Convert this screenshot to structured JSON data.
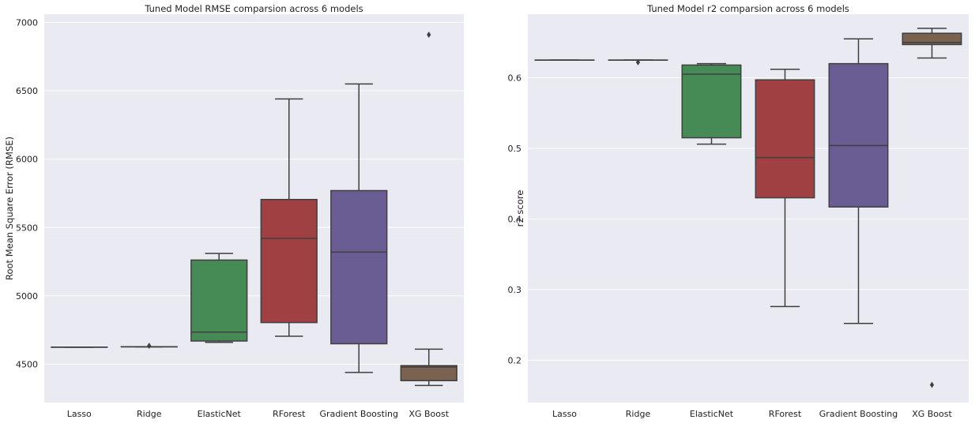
{
  "chart_data": [
    {
      "type": "box",
      "title": "Tuned Model RMSE comparsion across 6 models",
      "xlabel": "",
      "ylabel": "Root Mean Square Error (RMSE)",
      "ylim": [
        4220,
        7060
      ],
      "yticks": [
        4500,
        5000,
        5500,
        6000,
        6500,
        7000
      ],
      "yticklabels": [
        "4500",
        "5000",
        "5500",
        "6000",
        "6500",
        "7000"
      ],
      "grid": true,
      "categories": [
        "Lasso",
        "Ridge",
        "ElasticNet",
        "RForest",
        "Gradient Boosting",
        "XG Boost"
      ],
      "boxes": [
        {
          "whislo": 4625,
          "q1": 4625,
          "med": 4625,
          "q3": 4625,
          "whishi": 4625,
          "fliers": []
        },
        {
          "whislo": 4628,
          "q1": 4628,
          "med": 4628,
          "q3": 4628,
          "whishi": 4628,
          "fliers": [
            4635
          ]
        },
        {
          "whislo": 4660,
          "q1": 4670,
          "med": 4735,
          "q3": 5262,
          "whishi": 5310,
          "fliers": []
        },
        {
          "whislo": 4705,
          "q1": 4805,
          "med": 5420,
          "q3": 5705,
          "whishi": 6440,
          "fliers": []
        },
        {
          "whislo": 4440,
          "q1": 4650,
          "med": 5320,
          "q3": 5770,
          "whishi": 6550,
          "fliers": []
        },
        {
          "whislo": 4345,
          "q1": 4380,
          "med": 4480,
          "q3": 4490,
          "whishi": 4610,
          "fliers": [
            6910
          ]
        }
      ],
      "colors": [
        "#4c72b0",
        "#dd8452",
        "#55a868",
        "#c44e52",
        "#8172b3",
        "#937860"
      ]
    },
    {
      "type": "box",
      "title": "Tuned Model r2 comparsion across 6 models",
      "xlabel": "",
      "ylabel": "r2 score",
      "ylim": [
        0.14,
        0.69
      ],
      "yticks": [
        0.2,
        0.3,
        0.4,
        0.5,
        0.6
      ],
      "yticklabels": [
        "0.2",
        "0.3",
        "0.4",
        "0.5",
        "0.6"
      ],
      "grid": true,
      "categories": [
        "Lasso",
        "Ridge",
        "ElasticNet",
        "RForest",
        "Gradient Boosting",
        "XG Boost"
      ],
      "boxes": [
        {
          "whislo": 0.625,
          "q1": 0.625,
          "med": 0.625,
          "q3": 0.625,
          "whishi": 0.625,
          "fliers": []
        },
        {
          "whislo": 0.625,
          "q1": 0.625,
          "med": 0.625,
          "q3": 0.625,
          "whishi": 0.625,
          "fliers": [
            0.622
          ]
        },
        {
          "whislo": 0.506,
          "q1": 0.515,
          "med": 0.605,
          "q3": 0.618,
          "whishi": 0.62,
          "fliers": []
        },
        {
          "whislo": 0.276,
          "q1": 0.43,
          "med": 0.487,
          "q3": 0.597,
          "whishi": 0.612,
          "fliers": []
        },
        {
          "whislo": 0.252,
          "q1": 0.417,
          "med": 0.504,
          "q3": 0.62,
          "whishi": 0.655,
          "fliers": []
        },
        {
          "whislo": 0.628,
          "q1": 0.647,
          "med": 0.65,
          "q3": 0.663,
          "whishi": 0.67,
          "fliers": [
            0.165
          ]
        }
      ],
      "colors": [
        "#4c72b0",
        "#dd8452",
        "#55a868",
        "#c44e52",
        "#8172b3",
        "#937860"
      ]
    }
  ]
}
